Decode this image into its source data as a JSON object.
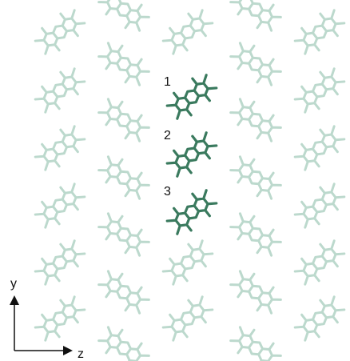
{
  "labels": [
    "1",
    "2",
    "3"
  ],
  "axes": {
    "y": "y",
    "z": "z"
  }
}
